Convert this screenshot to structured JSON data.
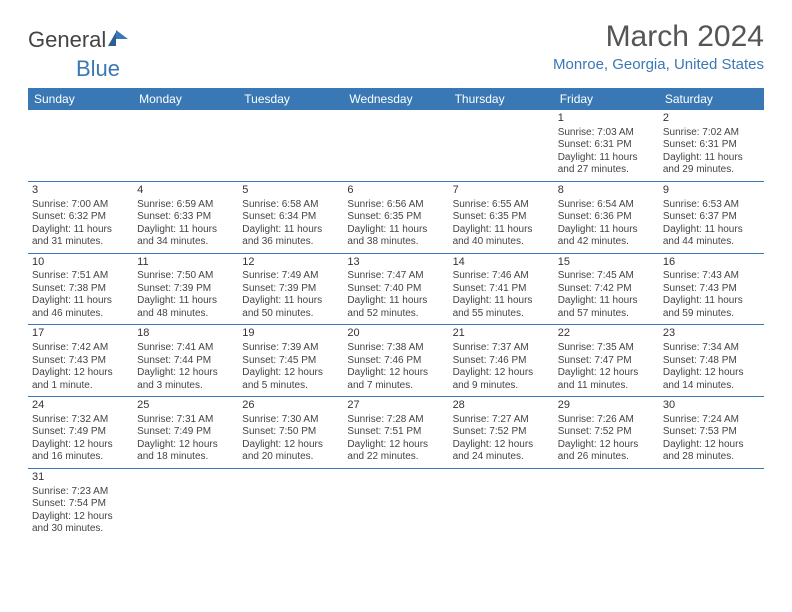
{
  "brand": {
    "part1": "General",
    "part2": "Blue"
  },
  "title": "March 2024",
  "location": "Monroe, Georgia, United States",
  "colors": {
    "accent": "#3a78b5",
    "text": "#444444",
    "bg": "#ffffff"
  },
  "weekdays": [
    "Sunday",
    "Monday",
    "Tuesday",
    "Wednesday",
    "Thursday",
    "Friday",
    "Saturday"
  ],
  "first_weekday_index": 5,
  "days": [
    {
      "n": 1,
      "sunrise": "7:03 AM",
      "sunset": "6:31 PM",
      "daylight": "11 hours and 27 minutes."
    },
    {
      "n": 2,
      "sunrise": "7:02 AM",
      "sunset": "6:31 PM",
      "daylight": "11 hours and 29 minutes."
    },
    {
      "n": 3,
      "sunrise": "7:00 AM",
      "sunset": "6:32 PM",
      "daylight": "11 hours and 31 minutes."
    },
    {
      "n": 4,
      "sunrise": "6:59 AM",
      "sunset": "6:33 PM",
      "daylight": "11 hours and 34 minutes."
    },
    {
      "n": 5,
      "sunrise": "6:58 AM",
      "sunset": "6:34 PM",
      "daylight": "11 hours and 36 minutes."
    },
    {
      "n": 6,
      "sunrise": "6:56 AM",
      "sunset": "6:35 PM",
      "daylight": "11 hours and 38 minutes."
    },
    {
      "n": 7,
      "sunrise": "6:55 AM",
      "sunset": "6:35 PM",
      "daylight": "11 hours and 40 minutes."
    },
    {
      "n": 8,
      "sunrise": "6:54 AM",
      "sunset": "6:36 PM",
      "daylight": "11 hours and 42 minutes."
    },
    {
      "n": 9,
      "sunrise": "6:53 AM",
      "sunset": "6:37 PM",
      "daylight": "11 hours and 44 minutes."
    },
    {
      "n": 10,
      "sunrise": "7:51 AM",
      "sunset": "7:38 PM",
      "daylight": "11 hours and 46 minutes."
    },
    {
      "n": 11,
      "sunrise": "7:50 AM",
      "sunset": "7:39 PM",
      "daylight": "11 hours and 48 minutes."
    },
    {
      "n": 12,
      "sunrise": "7:49 AM",
      "sunset": "7:39 PM",
      "daylight": "11 hours and 50 minutes."
    },
    {
      "n": 13,
      "sunrise": "7:47 AM",
      "sunset": "7:40 PM",
      "daylight": "11 hours and 52 minutes."
    },
    {
      "n": 14,
      "sunrise": "7:46 AM",
      "sunset": "7:41 PM",
      "daylight": "11 hours and 55 minutes."
    },
    {
      "n": 15,
      "sunrise": "7:45 AM",
      "sunset": "7:42 PM",
      "daylight": "11 hours and 57 minutes."
    },
    {
      "n": 16,
      "sunrise": "7:43 AM",
      "sunset": "7:43 PM",
      "daylight": "11 hours and 59 minutes."
    },
    {
      "n": 17,
      "sunrise": "7:42 AM",
      "sunset": "7:43 PM",
      "daylight": "12 hours and 1 minute."
    },
    {
      "n": 18,
      "sunrise": "7:41 AM",
      "sunset": "7:44 PM",
      "daylight": "12 hours and 3 minutes."
    },
    {
      "n": 19,
      "sunrise": "7:39 AM",
      "sunset": "7:45 PM",
      "daylight": "12 hours and 5 minutes."
    },
    {
      "n": 20,
      "sunrise": "7:38 AM",
      "sunset": "7:46 PM",
      "daylight": "12 hours and 7 minutes."
    },
    {
      "n": 21,
      "sunrise": "7:37 AM",
      "sunset": "7:46 PM",
      "daylight": "12 hours and 9 minutes."
    },
    {
      "n": 22,
      "sunrise": "7:35 AM",
      "sunset": "7:47 PM",
      "daylight": "12 hours and 11 minutes."
    },
    {
      "n": 23,
      "sunrise": "7:34 AM",
      "sunset": "7:48 PM",
      "daylight": "12 hours and 14 minutes."
    },
    {
      "n": 24,
      "sunrise": "7:32 AM",
      "sunset": "7:49 PM",
      "daylight": "12 hours and 16 minutes."
    },
    {
      "n": 25,
      "sunrise": "7:31 AM",
      "sunset": "7:49 PM",
      "daylight": "12 hours and 18 minutes."
    },
    {
      "n": 26,
      "sunrise": "7:30 AM",
      "sunset": "7:50 PM",
      "daylight": "12 hours and 20 minutes."
    },
    {
      "n": 27,
      "sunrise": "7:28 AM",
      "sunset": "7:51 PM",
      "daylight": "12 hours and 22 minutes."
    },
    {
      "n": 28,
      "sunrise": "7:27 AM",
      "sunset": "7:52 PM",
      "daylight": "12 hours and 24 minutes."
    },
    {
      "n": 29,
      "sunrise": "7:26 AM",
      "sunset": "7:52 PM",
      "daylight": "12 hours and 26 minutes."
    },
    {
      "n": 30,
      "sunrise": "7:24 AM",
      "sunset": "7:53 PM",
      "daylight": "12 hours and 28 minutes."
    },
    {
      "n": 31,
      "sunrise": "7:23 AM",
      "sunset": "7:54 PM",
      "daylight": "12 hours and 30 minutes."
    }
  ],
  "labels": {
    "sunrise": "Sunrise:",
    "sunset": "Sunset:",
    "daylight": "Daylight:"
  }
}
